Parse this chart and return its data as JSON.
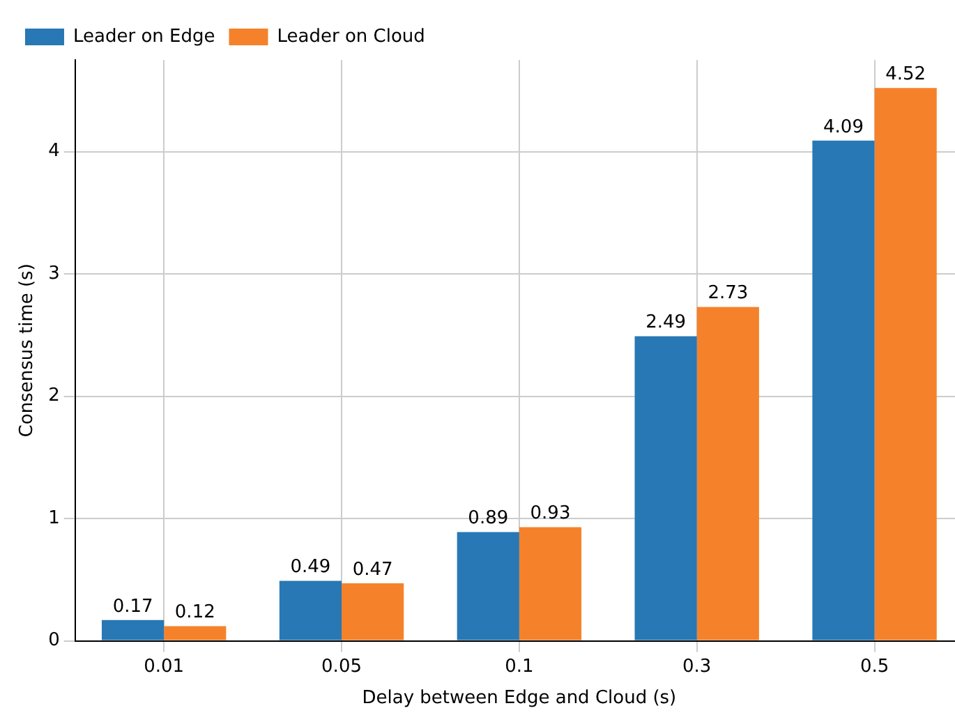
{
  "chart_data": {
    "type": "bar",
    "xlabel": "Delay between Edge and Cloud (s)",
    "ylabel": "Consensus time (s)",
    "categories": [
      "0.01",
      "0.05",
      "0.1",
      "0.3",
      "0.5"
    ],
    "series": [
      {
        "name": "Leader on Edge",
        "color": "#2778b4",
        "values": [
          0.17,
          0.49,
          0.89,
          2.49,
          4.09
        ]
      },
      {
        "name": "Leader on Cloud",
        "color": "#f5822b",
        "values": [
          0.12,
          0.47,
          0.93,
          2.73,
          4.52
        ]
      }
    ],
    "ylim": [
      0,
      4.75
    ],
    "yticks": [
      0,
      1,
      2,
      3,
      4
    ],
    "grid": true,
    "legend": "top left",
    "data_labels": true
  }
}
